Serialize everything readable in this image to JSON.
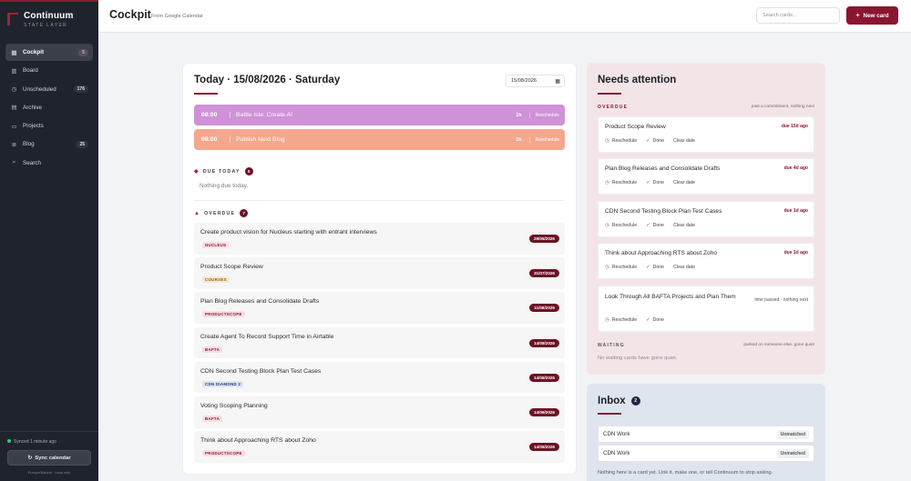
{
  "app": {
    "name": "Continuum",
    "tagline": "STATE LAYER"
  },
  "sidebar": {
    "items": [
      {
        "label": "Cockpit",
        "icon": "grid-icon",
        "count": "5",
        "active": true
      },
      {
        "label": "Board",
        "icon": "board-icon",
        "count": ""
      },
      {
        "label": "Unscheduled",
        "icon": "clock-icon",
        "count": "176"
      },
      {
        "label": "Archive",
        "icon": "archive-icon",
        "count": ""
      },
      {
        "label": "Projects",
        "icon": "folder-icon",
        "count": ""
      },
      {
        "label": "Blog",
        "icon": "blog-icon",
        "count": "25"
      },
      {
        "label": "Search",
        "icon": "search-icon",
        "count": ""
      }
    ],
    "synced": "Synced 1 minute ago",
    "sync_button": "Sync calendar",
    "timezone": "Europe/Madrid · local only"
  },
  "header": {
    "title": "Cockpit",
    "subtitle": "From Google Calendar",
    "search_placeholder": "Search cards...",
    "new_card": "New card"
  },
  "today": {
    "title": "Today · 15/08/2026 · Saturday",
    "date_value": "15/08/2026",
    "slots": [
      {
        "time": "08:00",
        "title": "Battle Isle: Create AI",
        "duration": "1h",
        "action": "Reschedule",
        "color": "#cf91d8"
      },
      {
        "time": "08:00",
        "title": "Publish Next Blog",
        "duration": "1h",
        "action": "Reschedule",
        "color": "#f5a78e"
      }
    ],
    "due_today": {
      "label": "DUE TODAY",
      "count": "0",
      "empty": "Nothing due today."
    },
    "overdue": {
      "label": "OVERDUE",
      "count": "7",
      "items": [
        {
          "title": "Create product vision for Nucleus starting with entrant interviews",
          "tag": "NUCLEUS",
          "date": "29/05/2026",
          "tag_color": "#8a1531",
          "tag_bg": "#f8dfe3"
        },
        {
          "title": "Product Scope Review",
          "tag": "COURSES",
          "date": "31/07/2026",
          "tag_color": "#8a5a10",
          "tag_bg": "#f7ead2"
        },
        {
          "title": "Plan Blog Releases and Consolidate Drafts",
          "tag": "PRODUCTSCOPE",
          "date": "11/08/2026",
          "tag_color": "#8a1531",
          "tag_bg": "#f8dfe3"
        },
        {
          "title": "Create Agent To Record Support Time in Airtable",
          "tag": "BAFTA",
          "date": "14/08/2026",
          "tag_color": "#8a1531",
          "tag_bg": "#f8dfe3"
        },
        {
          "title": "CDN Second Testing Block Plan Test Cases",
          "tag": "CDN DIAMOND 2",
          "date": "14/08/2026",
          "tag_color": "#1f3a66",
          "tag_bg": "#dde6f3"
        },
        {
          "title": "Voting Scoping Planning",
          "tag": "BAFTA",
          "date": "14/08/2026",
          "tag_color": "#8a1531",
          "tag_bg": "#f8dfe3"
        },
        {
          "title": "Think about Approaching RTS about Zoho",
          "tag": "PRODUCTSCOPE",
          "date": "14/08/2026",
          "tag_color": "#8a1531",
          "tag_bg": "#f8dfe3"
        }
      ]
    }
  },
  "needs_attention": {
    "title": "Needs attention",
    "overdue_label": "OVERDUE",
    "overdue_note": "past a commitment, nothing next",
    "actions": {
      "reschedule": "Reschedule",
      "done": "Done",
      "clear": "Clear date"
    },
    "cards": [
      {
        "title": "Product Scope Review",
        "due": "due 15d ago",
        "clear": true
      },
      {
        "title": "Plan Blog Releases and Consolidate Drafts",
        "due": "due 4d ago",
        "clear": true
      },
      {
        "title": "CDN Second Testing Block Plan Test Cases",
        "due": "due 1d ago",
        "clear": true
      },
      {
        "title": "Think about Approaching RTS about Zoho",
        "due": "due 1d ago",
        "clear": true
      },
      {
        "title": "Look Through All BAFTA Projects and Plan Them",
        "due": "time passed · nothing next",
        "clear": false
      }
    ],
    "waiting_label": "WAITING",
    "waiting_note": "parked on someone else, gone quiet",
    "waiting_empty": "No waiting cards have gone quiet."
  },
  "inbox": {
    "title": "Inbox",
    "count": "2",
    "rows": [
      {
        "name": "CDN Work",
        "status": "Unmatched"
      },
      {
        "name": "CDN Work",
        "status": "Unmatched"
      }
    ],
    "note": "Nothing here is a card yet. Link it, make one, or tell Continuum to stop asking."
  },
  "colors": {
    "accent": "#8a1531",
    "sidebar": "#1f232b",
    "needs_bg": "#f3e5e7",
    "inbox_bg": "#dfe5ee"
  }
}
